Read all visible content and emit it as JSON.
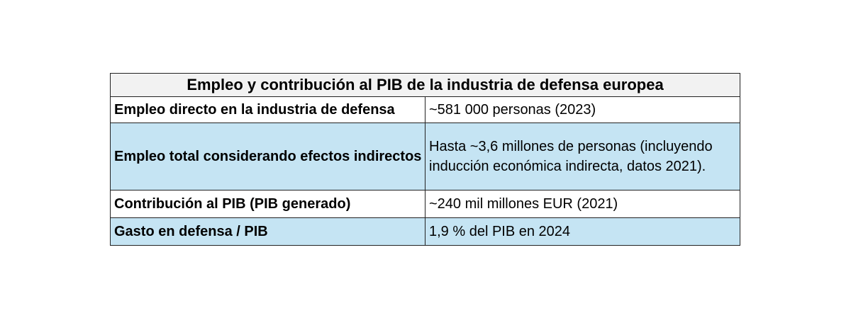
{
  "table": {
    "title": "Empleo y contribución al PIB de la industria de defensa europea",
    "rows": [
      {
        "label": "Empleo directo en la industria de defensa",
        "value": "~581 000 personas (2023)"
      },
      {
        "label": "Empleo total considerando efectos indirectos",
        "value": "Hasta ~3,6 millones de personas (incluyendo inducción económica indirecta, datos 2021)."
      },
      {
        "label": "Contribución al PIB (PIB generado)",
        "value": "~240 mil millones EUR (2021)"
      },
      {
        "label": "Gasto en defensa / PIB",
        "value": "1,9 % del PIB en 2024"
      }
    ]
  },
  "colors": {
    "header_bg": "#f2f2f2",
    "row_blue": "#c5e4f3",
    "row_white": "#ffffff",
    "border": "#222222"
  }
}
